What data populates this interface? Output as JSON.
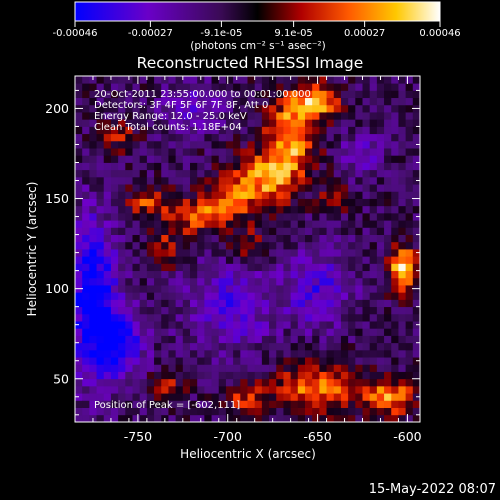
{
  "colorbar": {
    "tick_labels": [
      "-0.00046",
      "-0.00027",
      "-9.1e-05",
      "9.1e-05",
      "0.00027",
      "0.00046"
    ],
    "tick_values": [
      -0.00046,
      -0.00027,
      -9.1e-05,
      9.1e-05,
      0.00027,
      0.00046
    ],
    "range": [
      -0.00046,
      0.00046
    ],
    "units_label": "(photons cm⁻² s⁻¹ asec⁻²)"
  },
  "chart_data": {
    "type": "heatmap",
    "title": "Reconstructed RHESSI Image",
    "xlabel": "Heliocentric X (arcsec)",
    "ylabel": "Heliocentric Y (arcsec)",
    "xlim": [
      -785,
      -593
    ],
    "ylim": [
      26,
      218
    ],
    "xticks": [
      -750,
      -700,
      -650,
      -600
    ],
    "xtick_labels": [
      "-750",
      "-700",
      "-650",
      "-600"
    ],
    "yticks": [
      50,
      100,
      150,
      200
    ],
    "ytick_labels": [
      "50",
      "100",
      "150",
      "200"
    ],
    "colormap": [
      "#0000ff",
      "#7b00c0",
      "#3a1050",
      "#000000",
      "#c00000",
      "#ff6a00",
      "#ffd200",
      "#ffffff"
    ],
    "peak": [
      -602,
      111
    ],
    "annotations": [
      "20-Oct-2011 23:55:00.000 to 00:01:00.000",
      "Detectors: 3F 4F 5F 6F 7F 8F, Att 0",
      "Energy Range: 12.0 - 25.0 keV",
      "Clean     Total counts: 1.18E+04"
    ],
    "peak_label": "Position of Peak = [-602,111]",
    "grid": false
  },
  "timestamp": "15-May-2022 08:07"
}
